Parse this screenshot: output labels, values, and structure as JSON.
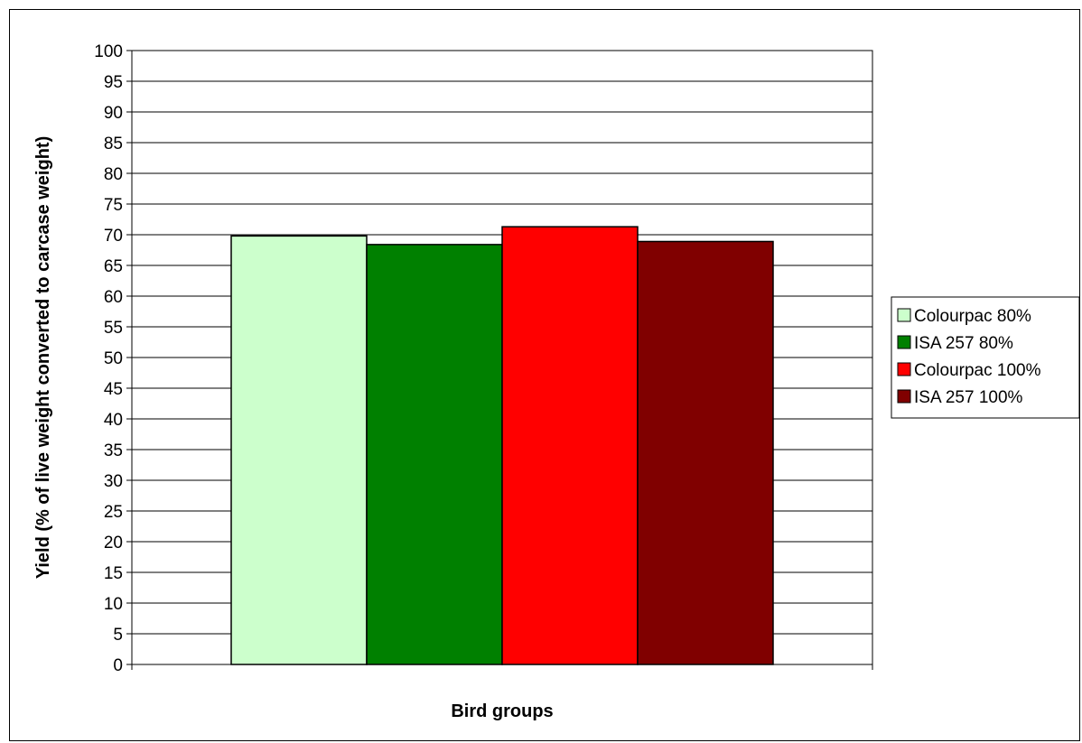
{
  "chart_data": {
    "type": "bar",
    "title": "",
    "xlabel": "Bird groups",
    "ylabel": "Yield (% of live weight converted to carcase weight)",
    "ylim": [
      0,
      100
    ],
    "ytick_step": 5,
    "grid": true,
    "legend_position": "right",
    "categories": [
      ""
    ],
    "series": [
      {
        "name": "Colourpac 80%",
        "values": [
          69.8
        ],
        "color": "#ccffcc"
      },
      {
        "name": "ISA 257 80%",
        "values": [
          68.4
        ],
        "color": "#008000"
      },
      {
        "name": "Colourpac 100%",
        "values": [
          71.3
        ],
        "color": "#ff0000"
      },
      {
        "name": "ISA 257 100%",
        "values": [
          68.9
        ],
        "color": "#800000"
      }
    ]
  }
}
